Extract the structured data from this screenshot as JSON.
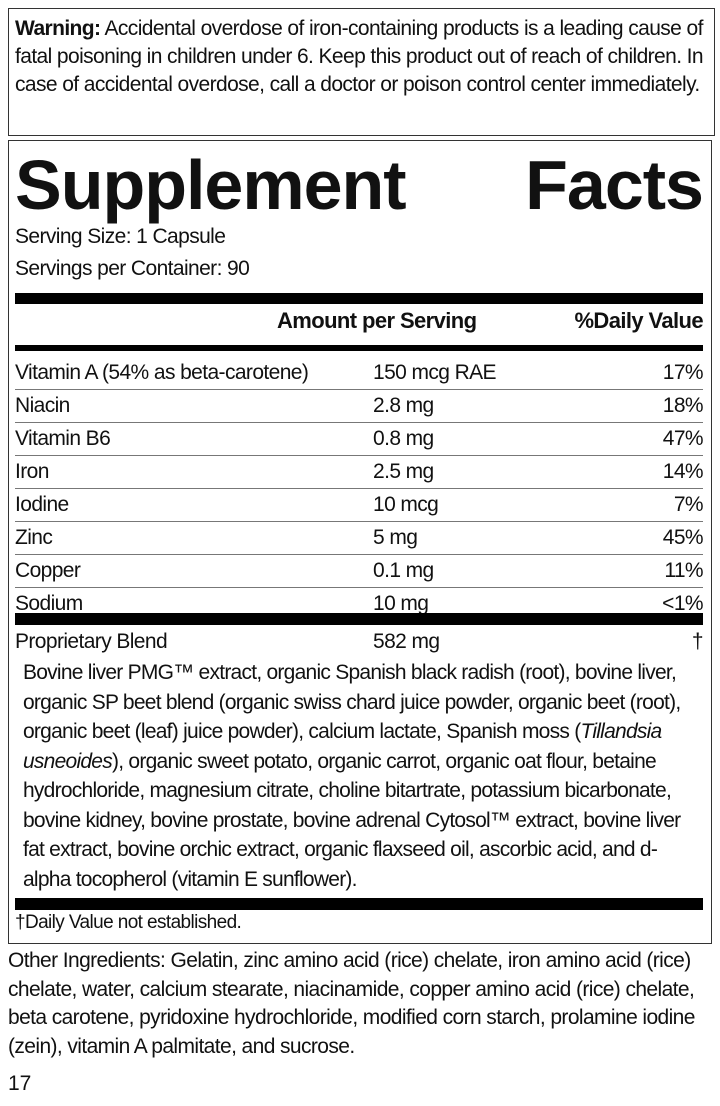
{
  "warning": {
    "label": "Warning:",
    "text": " Accidental overdose of iron-containing products is a leading cause of fatal poisoning in children under 6. Keep this product out of reach of children. In case of accidental overdose, call a doctor or poison control center immediately."
  },
  "facts": {
    "title_word1": "Supplement",
    "title_word2": "Facts",
    "serving_size": "Serving Size: 1 Capsule",
    "servings_per_container": "Servings per Container: 90",
    "header_amount": "Amount per Serving",
    "header_dv": "%Daily Value",
    "rows": [
      {
        "name": "Vitamin A (54% as beta-carotene)",
        "amount": "150 mcg RAE",
        "dv": "17%"
      },
      {
        "name": "Niacin",
        "amount": "2.8 mg",
        "dv": "18%"
      },
      {
        "name": "Vitamin B6",
        "amount": "0.8 mg",
        "dv": "47%"
      },
      {
        "name": "Iron",
        "amount": "2.5 mg",
        "dv": "14%"
      },
      {
        "name": "Iodine",
        "amount": "10 mcg",
        "dv": "7%"
      },
      {
        "name": "Zinc",
        "amount": "5 mg",
        "dv": "45%"
      },
      {
        "name": "Copper",
        "amount": "0.1 mg",
        "dv": "11%"
      },
      {
        "name": "Sodium",
        "amount": "10 mg",
        "dv": "<1%"
      }
    ],
    "blend": {
      "name": "Proprietary Blend",
      "amount": "582 mg",
      "dv": "†",
      "ingredients_before": "Bovine liver PMG™ extract, organic Spanish black radish (root), bovine liver, organic SP beet blend (organic swiss chard juice powder, organic beet (root), organic beet (leaf) juice powder), calcium lactate, Spanish moss (",
      "ingredients_italic": "Tillandsia usneoides",
      "ingredients_after": "), organic sweet potato, organic carrot, organic oat flour, betaine hydrochloride, magnesium citrate, choline bitartrate, potassium bicarbonate, bovine kidney, bovine prostate, bovine adrenal Cytosol™ extract, bovine liver fat extract, bovine orchic extract, organic flaxseed oil, ascorbic acid, and d-alpha tocopherol (vitamin E sunflower)."
    },
    "footnote": "†Daily Value not established."
  },
  "other_ingredients": "Other Ingredients: Gelatin, zinc amino acid (rice) chelate, iron amino acid (rice) chelate, water, calcium stearate, niacinamide, copper amino acid (rice) chelate, beta carotene, pyridoxine hydrochloride, modified corn starch, prolamine iodine (zein), vitamin A palmitate, and sucrose.",
  "page_number": "17"
}
